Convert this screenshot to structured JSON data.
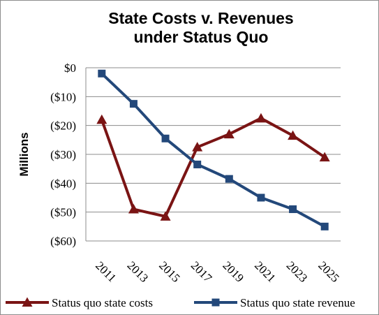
{
  "chart_data": {
    "type": "line",
    "title_lines": [
      "State Costs v. Revenues",
      "under Status Quo"
    ],
    "ylabel": "Millions",
    "xlabel": "",
    "x": [
      "2011",
      "2013",
      "2015",
      "2017",
      "2019",
      "2021",
      "2023",
      "2025"
    ],
    "yticks": [
      "$0",
      "($10)",
      "($20)",
      "($30)",
      "($40)",
      "($50)",
      "($60)"
    ],
    "ylim": [
      -60,
      0
    ],
    "grid": true,
    "legend_position": "bottom",
    "series": [
      {
        "name": "Status quo state costs",
        "marker": "triangle",
        "color": "#7a1414",
        "values": [
          -18,
          -49,
          -51.5,
          -27.5,
          -23,
          -17.5,
          -23.5,
          -31
        ]
      },
      {
        "name": "Status quo state revenue",
        "marker": "square",
        "color": "#23487a",
        "values": [
          -2,
          -12.5,
          -24.5,
          -33.5,
          -38.5,
          -45,
          -49,
          -55
        ]
      }
    ]
  }
}
